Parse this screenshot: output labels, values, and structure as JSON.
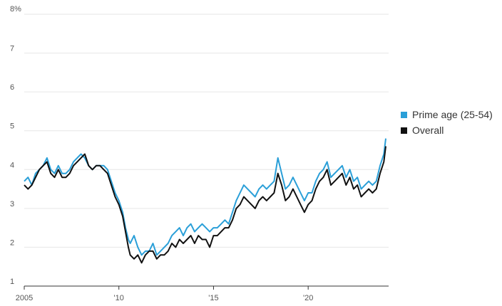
{
  "chart_data": {
    "type": "line",
    "title": "",
    "xlabel": "",
    "ylabel": "",
    "ylim": [
      1,
      8
    ],
    "xlim": [
      2005,
      2024.2
    ],
    "y_ticks": [
      {
        "value": 8,
        "label": "8%"
      },
      {
        "value": 7,
        "label": "7"
      },
      {
        "value": 6,
        "label": "6"
      },
      {
        "value": 5,
        "label": "5"
      },
      {
        "value": 4,
        "label": "4"
      },
      {
        "value": 3,
        "label": "3"
      },
      {
        "value": 2,
        "label": "2"
      },
      {
        "value": 1,
        "label": "1"
      }
    ],
    "x_ticks": [
      {
        "value": 2005,
        "label": "2005"
      },
      {
        "value": 2010,
        "label": "'10"
      },
      {
        "value": 2015,
        "label": "'15"
      },
      {
        "value": 2020,
        "label": "'20"
      }
    ],
    "grid": "horizontal",
    "legend_position": "right",
    "series": [
      {
        "name": "Prime age (25-54)",
        "color": "#2a9fd8",
        "points": [
          [
            2005.0,
            3.7
          ],
          [
            2005.2,
            3.8
          ],
          [
            2005.4,
            3.6
          ],
          [
            2005.6,
            3.9
          ],
          [
            2005.8,
            4.0
          ],
          [
            2006.0,
            4.1
          ],
          [
            2006.2,
            4.3
          ],
          [
            2006.4,
            4.0
          ],
          [
            2006.6,
            3.9
          ],
          [
            2006.8,
            4.1
          ],
          [
            2007.0,
            3.9
          ],
          [
            2007.2,
            3.9
          ],
          [
            2007.4,
            4.0
          ],
          [
            2007.6,
            4.2
          ],
          [
            2007.8,
            4.3
          ],
          [
            2008.0,
            4.4
          ],
          [
            2008.2,
            4.3
          ],
          [
            2008.4,
            4.1
          ],
          [
            2008.6,
            4.0
          ],
          [
            2008.8,
            4.1
          ],
          [
            2009.0,
            4.1
          ],
          [
            2009.2,
            4.1
          ],
          [
            2009.4,
            4.0
          ],
          [
            2009.6,
            3.7
          ],
          [
            2009.8,
            3.4
          ],
          [
            2010.0,
            3.2
          ],
          [
            2010.2,
            2.9
          ],
          [
            2010.35,
            2.5
          ],
          [
            2010.5,
            2.2
          ],
          [
            2010.6,
            2.1
          ],
          [
            2010.8,
            2.3
          ],
          [
            2011.0,
            2.0
          ],
          [
            2011.2,
            1.8
          ],
          [
            2011.4,
            1.9
          ],
          [
            2011.6,
            1.9
          ],
          [
            2011.8,
            2.1
          ],
          [
            2012.0,
            1.8
          ],
          [
            2012.2,
            1.9
          ],
          [
            2012.4,
            2.0
          ],
          [
            2012.6,
            2.1
          ],
          [
            2012.8,
            2.3
          ],
          [
            2013.0,
            2.4
          ],
          [
            2013.2,
            2.5
          ],
          [
            2013.4,
            2.3
          ],
          [
            2013.6,
            2.5
          ],
          [
            2013.8,
            2.6
          ],
          [
            2014.0,
            2.4
          ],
          [
            2014.2,
            2.5
          ],
          [
            2014.4,
            2.6
          ],
          [
            2014.6,
            2.5
          ],
          [
            2014.8,
            2.4
          ],
          [
            2015.0,
            2.5
          ],
          [
            2015.2,
            2.5
          ],
          [
            2015.4,
            2.6
          ],
          [
            2015.6,
            2.7
          ],
          [
            2015.8,
            2.6
          ],
          [
            2016.0,
            2.9
          ],
          [
            2016.2,
            3.2
          ],
          [
            2016.4,
            3.4
          ],
          [
            2016.6,
            3.6
          ],
          [
            2016.8,
            3.5
          ],
          [
            2017.0,
            3.4
          ],
          [
            2017.2,
            3.3
          ],
          [
            2017.4,
            3.5
          ],
          [
            2017.6,
            3.6
          ],
          [
            2017.8,
            3.5
          ],
          [
            2018.0,
            3.6
          ],
          [
            2018.2,
            3.7
          ],
          [
            2018.4,
            4.3
          ],
          [
            2018.6,
            3.9
          ],
          [
            2018.8,
            3.5
          ],
          [
            2019.0,
            3.6
          ],
          [
            2019.2,
            3.8
          ],
          [
            2019.4,
            3.6
          ],
          [
            2019.6,
            3.4
          ],
          [
            2019.8,
            3.2
          ],
          [
            2020.0,
            3.4
          ],
          [
            2020.2,
            3.4
          ],
          [
            2020.4,
            3.7
          ],
          [
            2020.6,
            3.9
          ],
          [
            2020.8,
            4.0
          ],
          [
            2021.0,
            4.2
          ],
          [
            2021.2,
            3.8
          ],
          [
            2021.4,
            3.9
          ],
          [
            2021.6,
            4.0
          ],
          [
            2021.8,
            4.1
          ],
          [
            2022.0,
            3.8
          ],
          [
            2022.2,
            4.0
          ],
          [
            2022.4,
            3.7
          ],
          [
            2022.6,
            3.8
          ],
          [
            2022.8,
            3.5
          ],
          [
            2023.0,
            3.6
          ],
          [
            2023.2,
            3.7
          ],
          [
            2023.4,
            3.6
          ],
          [
            2023.6,
            3.7
          ],
          [
            2023.8,
            4.1
          ],
          [
            2024.0,
            4.4
          ],
          [
            2024.1,
            4.8
          ]
        ]
      },
      {
        "name": "Overall",
        "color": "#111111",
        "points": [
          [
            2005.0,
            3.6
          ],
          [
            2005.2,
            3.5
          ],
          [
            2005.4,
            3.6
          ],
          [
            2005.6,
            3.8
          ],
          [
            2005.8,
            4.0
          ],
          [
            2006.0,
            4.1
          ],
          [
            2006.2,
            4.2
          ],
          [
            2006.4,
            3.9
          ],
          [
            2006.6,
            3.8
          ],
          [
            2006.8,
            4.0
          ],
          [
            2007.0,
            3.8
          ],
          [
            2007.2,
            3.8
          ],
          [
            2007.4,
            3.9
          ],
          [
            2007.6,
            4.1
          ],
          [
            2007.8,
            4.2
          ],
          [
            2008.0,
            4.3
          ],
          [
            2008.2,
            4.4
          ],
          [
            2008.4,
            4.1
          ],
          [
            2008.6,
            4.0
          ],
          [
            2008.8,
            4.1
          ],
          [
            2009.0,
            4.1
          ],
          [
            2009.2,
            4.0
          ],
          [
            2009.4,
            3.9
          ],
          [
            2009.6,
            3.6
          ],
          [
            2009.8,
            3.3
          ],
          [
            2010.0,
            3.1
          ],
          [
            2010.2,
            2.8
          ],
          [
            2010.35,
            2.4
          ],
          [
            2010.5,
            2.0
          ],
          [
            2010.6,
            1.8
          ],
          [
            2010.8,
            1.7
          ],
          [
            2011.0,
            1.8
          ],
          [
            2011.2,
            1.6
          ],
          [
            2011.4,
            1.8
          ],
          [
            2011.6,
            1.9
          ],
          [
            2011.8,
            1.9
          ],
          [
            2012.0,
            1.7
          ],
          [
            2012.2,
            1.8
          ],
          [
            2012.4,
            1.8
          ],
          [
            2012.6,
            1.9
          ],
          [
            2012.8,
            2.1
          ],
          [
            2013.0,
            2.0
          ],
          [
            2013.2,
            2.2
          ],
          [
            2013.4,
            2.1
          ],
          [
            2013.6,
            2.2
          ],
          [
            2013.8,
            2.3
          ],
          [
            2014.0,
            2.1
          ],
          [
            2014.2,
            2.3
          ],
          [
            2014.4,
            2.2
          ],
          [
            2014.6,
            2.2
          ],
          [
            2014.8,
            2.0
          ],
          [
            2015.0,
            2.3
          ],
          [
            2015.2,
            2.3
          ],
          [
            2015.4,
            2.4
          ],
          [
            2015.6,
            2.5
          ],
          [
            2015.8,
            2.5
          ],
          [
            2016.0,
            2.7
          ],
          [
            2016.2,
            3.0
          ],
          [
            2016.4,
            3.1
          ],
          [
            2016.6,
            3.3
          ],
          [
            2016.8,
            3.2
          ],
          [
            2017.0,
            3.1
          ],
          [
            2017.2,
            3.0
          ],
          [
            2017.4,
            3.2
          ],
          [
            2017.6,
            3.3
          ],
          [
            2017.8,
            3.2
          ],
          [
            2018.0,
            3.3
          ],
          [
            2018.2,
            3.4
          ],
          [
            2018.4,
            3.9
          ],
          [
            2018.6,
            3.6
          ],
          [
            2018.8,
            3.2
          ],
          [
            2019.0,
            3.3
          ],
          [
            2019.2,
            3.5
          ],
          [
            2019.4,
            3.3
          ],
          [
            2019.6,
            3.1
          ],
          [
            2019.8,
            2.9
          ],
          [
            2020.0,
            3.1
          ],
          [
            2020.2,
            3.2
          ],
          [
            2020.4,
            3.5
          ],
          [
            2020.6,
            3.7
          ],
          [
            2020.8,
            3.8
          ],
          [
            2021.0,
            4.0
          ],
          [
            2021.2,
            3.6
          ],
          [
            2021.4,
            3.7
          ],
          [
            2021.6,
            3.8
          ],
          [
            2021.8,
            3.9
          ],
          [
            2022.0,
            3.6
          ],
          [
            2022.2,
            3.8
          ],
          [
            2022.4,
            3.5
          ],
          [
            2022.6,
            3.6
          ],
          [
            2022.8,
            3.3
          ],
          [
            2023.0,
            3.4
          ],
          [
            2023.2,
            3.5
          ],
          [
            2023.4,
            3.4
          ],
          [
            2023.6,
            3.5
          ],
          [
            2023.8,
            3.9
          ],
          [
            2024.0,
            4.2
          ],
          [
            2024.1,
            4.6
          ]
        ]
      }
    ]
  }
}
